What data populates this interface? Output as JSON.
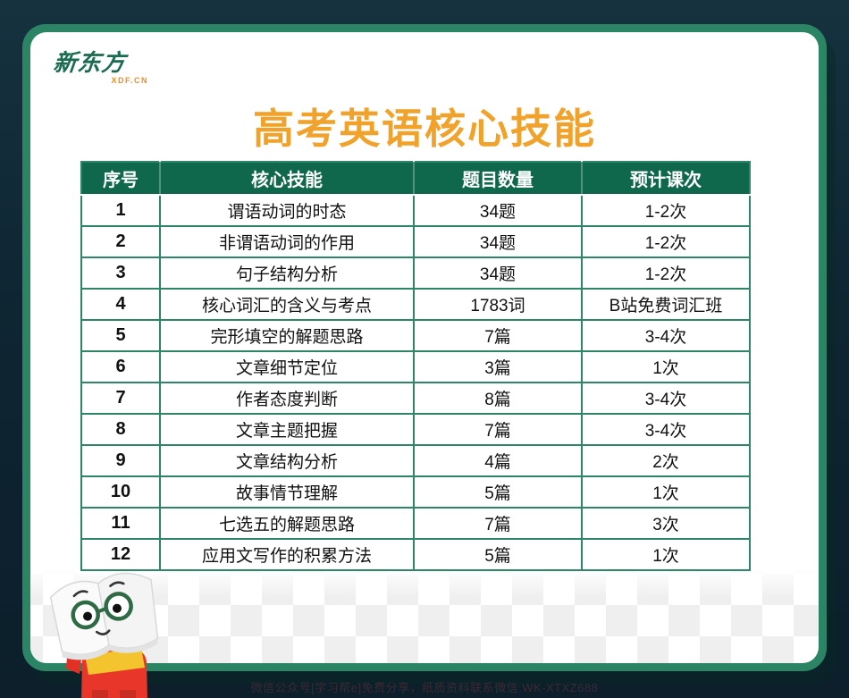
{
  "brand": {
    "logo_text": "新东方",
    "logo_domain": "XDF.CN"
  },
  "title": "高考英语核心技能",
  "table": {
    "headers": [
      "序号",
      "核心技能",
      "题目数量",
      "预计课次"
    ],
    "rows": [
      [
        "1",
        "谓语动词的时态",
        "34题",
        "1-2次"
      ],
      [
        "2",
        "非谓语动词的作用",
        "34题",
        "1-2次"
      ],
      [
        "3",
        "句子结构分析",
        "34题",
        "1-2次"
      ],
      [
        "4",
        "核心词汇的含义与考点",
        "1783词",
        "B站免费词汇班"
      ],
      [
        "5",
        "完形填空的解题思路",
        "7篇",
        "3-4次"
      ],
      [
        "6",
        "文章细节定位",
        "3篇",
        "1次"
      ],
      [
        "7",
        "作者态度判断",
        "8篇",
        "3-4次"
      ],
      [
        "8",
        "文章主题把握",
        "7篇",
        "3-4次"
      ],
      [
        "9",
        "文章结构分析",
        "4篇",
        "2次"
      ],
      [
        "10",
        "故事情节理解",
        "5篇",
        "1次"
      ],
      [
        "11",
        "七选五的解题思路",
        "7篇",
        "3次"
      ],
      [
        "12",
        "应用文写作的积累方法",
        "5篇",
        "1次"
      ]
    ]
  },
  "footer": {
    "watermark_text": "微信公众号[学习帮e]免费分享，纸质资料联系微信:WK-XTXZ688"
  },
  "colors": {
    "background_navy": "#0e2532",
    "frame_green": "#2b8565",
    "header_green": "#0f684b",
    "border_green": "#2e8667",
    "accent_orange": "#f0a22b",
    "logo_green": "#1a6b4f"
  },
  "mascot": {
    "name": "xdf-book-mascot"
  }
}
